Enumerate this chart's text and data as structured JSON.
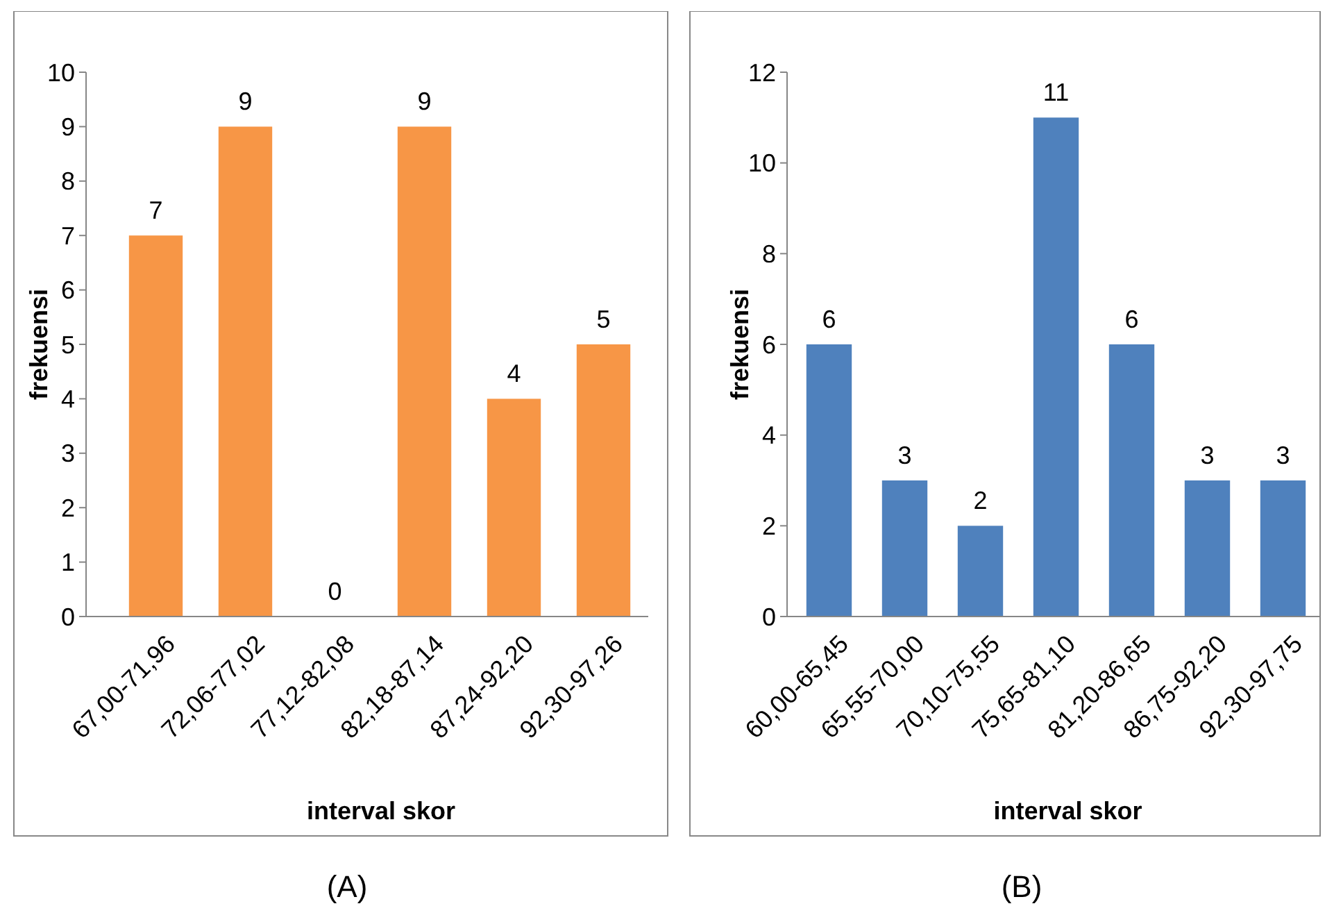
{
  "chart_data": [
    {
      "type": "bar",
      "categories": [
        "67,00-71,96",
        "72,06-77,02",
        "77,12-82,08",
        "82,18-87,14",
        "87,24-92,20",
        "92,30-97,26"
      ],
      "values": [
        7,
        9,
        0,
        9,
        4,
        5
      ],
      "color": "#f79646",
      "ylim": [
        0,
        10
      ],
      "yticks": [
        0,
        1,
        2,
        3,
        4,
        5,
        6,
        7,
        8,
        9,
        10
      ],
      "xlabel": "interval skor",
      "ylabel": "frekuensi",
      "data_labels": true,
      "grid": false,
      "annotations": [
        "(A)"
      ]
    },
    {
      "type": "bar",
      "categories": [
        "60,00-65,45",
        "65,55-70,00",
        "70,10-75,55",
        "75,65-81,10",
        "81,20-86,65",
        "86,75-92,20",
        "92,30-97,75"
      ],
      "values": [
        6,
        3,
        2,
        11,
        6,
        3,
        3
      ],
      "color": "#4f81bd",
      "ylim": [
        0,
        12
      ],
      "yticks": [
        0,
        2,
        4,
        6,
        8,
        10,
        12
      ],
      "xlabel": "interval skor",
      "ylabel": "frekuensi",
      "data_labels": true,
      "grid": false,
      "annotations": [
        "(B)"
      ]
    }
  ]
}
